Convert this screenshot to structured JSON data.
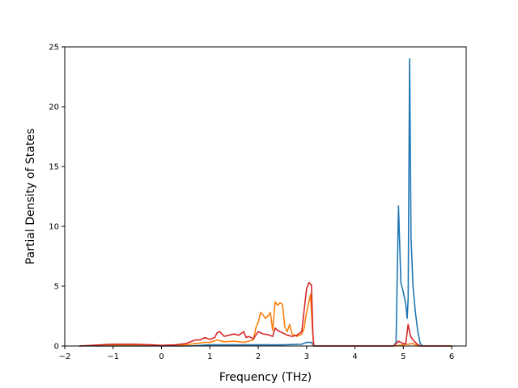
{
  "chart_data": {
    "type": "line",
    "title": "",
    "xlabel": "Frequency (THz)",
    "ylabel": "Partial Density of States",
    "xlim": [
      -2.0,
      6.3
    ],
    "ylim": [
      0,
      25
    ],
    "xticks": [
      -2,
      -1,
      0,
      1,
      2,
      3,
      4,
      5,
      6
    ],
    "yticks": [
      0,
      5,
      10,
      15,
      20,
      25
    ],
    "grid": false,
    "series": [
      {
        "color": "#1f77b4",
        "points": [
          [
            -1.7,
            0
          ],
          [
            0.6,
            0
          ],
          [
            0.8,
            0.05
          ],
          [
            1.0,
            0.1
          ],
          [
            1.5,
            0.1
          ],
          [
            2.0,
            0.1
          ],
          [
            2.5,
            0.1
          ],
          [
            2.9,
            0.15
          ],
          [
            3.0,
            0.3
          ],
          [
            3.1,
            0.3
          ],
          [
            3.15,
            0
          ],
          [
            4.8,
            0
          ],
          [
            4.85,
            0.3
          ],
          [
            4.9,
            11.7
          ],
          [
            4.95,
            5.3
          ],
          [
            5.0,
            4.5
          ],
          [
            5.05,
            3.5
          ],
          [
            5.08,
            2.3
          ],
          [
            5.1,
            4.0
          ],
          [
            5.13,
            24.0
          ],
          [
            5.16,
            9.0
          ],
          [
            5.2,
            5.0
          ],
          [
            5.25,
            2.8
          ],
          [
            5.3,
            1.2
          ],
          [
            5.35,
            0.2
          ],
          [
            5.4,
            0
          ],
          [
            6.0,
            0
          ]
        ]
      },
      {
        "color": "#ff7f0e",
        "points": [
          [
            -1.7,
            0
          ],
          [
            -1.0,
            0.1
          ],
          [
            -0.5,
            0.1
          ],
          [
            0,
            0.05
          ],
          [
            0.5,
            0.1
          ],
          [
            0.7,
            0.2
          ],
          [
            0.9,
            0.3
          ],
          [
            1.0,
            0.3
          ],
          [
            1.15,
            0.5
          ],
          [
            1.3,
            0.35
          ],
          [
            1.5,
            0.4
          ],
          [
            1.7,
            0.3
          ],
          [
            1.9,
            0.5
          ],
          [
            1.95,
            1.5
          ],
          [
            2.0,
            2.0
          ],
          [
            2.05,
            2.8
          ],
          [
            2.1,
            2.6
          ],
          [
            2.15,
            2.3
          ],
          [
            2.2,
            2.5
          ],
          [
            2.25,
            2.8
          ],
          [
            2.3,
            1.3
          ],
          [
            2.35,
            3.7
          ],
          [
            2.4,
            3.4
          ],
          [
            2.45,
            3.6
          ],
          [
            2.5,
            3.5
          ],
          [
            2.55,
            1.6
          ],
          [
            2.6,
            1.2
          ],
          [
            2.65,
            1.8
          ],
          [
            2.7,
            1.0
          ],
          [
            2.8,
            0.8
          ],
          [
            2.9,
            1.0
          ],
          [
            2.95,
            1.5
          ],
          [
            3.0,
            2.8
          ],
          [
            3.08,
            4.3
          ],
          [
            3.12,
            1.5
          ],
          [
            3.15,
            0
          ],
          [
            4.8,
            0
          ],
          [
            5.0,
            0.1
          ],
          [
            5.2,
            0.2
          ],
          [
            5.3,
            0
          ],
          [
            6.0,
            0
          ]
        ]
      },
      {
        "color": "#d62728",
        "points": [
          [
            -1.7,
            0
          ],
          [
            -1.0,
            0.15
          ],
          [
            -0.6,
            0.15
          ],
          [
            -0.2,
            0.1
          ],
          [
            0,
            0.05
          ],
          [
            0.3,
            0.1
          ],
          [
            0.5,
            0.2
          ],
          [
            0.7,
            0.5
          ],
          [
            0.8,
            0.5
          ],
          [
            0.9,
            0.7
          ],
          [
            1.0,
            0.55
          ],
          [
            1.1,
            0.7
          ],
          [
            1.15,
            1.1
          ],
          [
            1.2,
            1.2
          ],
          [
            1.3,
            0.8
          ],
          [
            1.4,
            0.9
          ],
          [
            1.5,
            1.0
          ],
          [
            1.6,
            0.9
          ],
          [
            1.7,
            1.2
          ],
          [
            1.75,
            0.7
          ],
          [
            1.8,
            0.8
          ],
          [
            1.9,
            0.6
          ],
          [
            1.95,
            0.9
          ],
          [
            2.0,
            1.2
          ],
          [
            2.1,
            1.0
          ],
          [
            2.2,
            0.95
          ],
          [
            2.3,
            0.8
          ],
          [
            2.35,
            1.5
          ],
          [
            2.4,
            1.3
          ],
          [
            2.5,
            1.1
          ],
          [
            2.6,
            0.9
          ],
          [
            2.7,
            0.8
          ],
          [
            2.8,
            0.9
          ],
          [
            2.9,
            1.2
          ],
          [
            3.0,
            4.8
          ],
          [
            3.05,
            5.3
          ],
          [
            3.1,
            5.1
          ],
          [
            3.13,
            1.0
          ],
          [
            3.15,
            0
          ],
          [
            4.8,
            0
          ],
          [
            4.9,
            0.4
          ],
          [
            5.0,
            0.2
          ],
          [
            5.05,
            0.2
          ],
          [
            5.1,
            1.8
          ],
          [
            5.15,
            0.8
          ],
          [
            5.2,
            0.5
          ],
          [
            5.3,
            0.1
          ],
          [
            5.35,
            0
          ],
          [
            6.0,
            0
          ]
        ]
      }
    ]
  }
}
